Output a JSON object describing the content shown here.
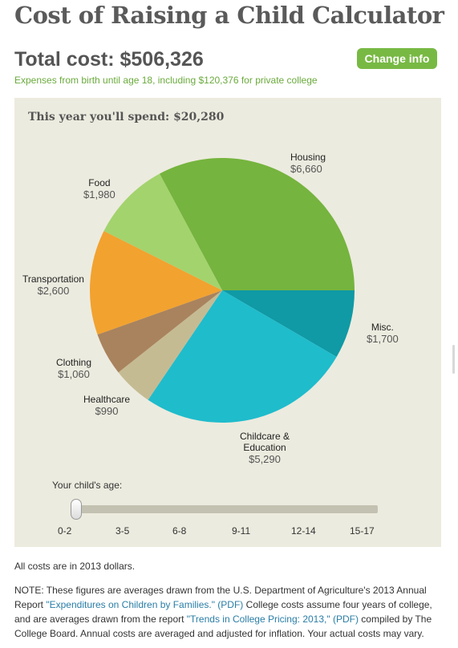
{
  "title": "Cost of Raising a Child Calculator",
  "total_cost": "Total cost: $506,326",
  "change_button": "Change info",
  "expenses_note": "Expenses from birth until age 18, including $120,376 for private college",
  "spend_heading": "This year you'll spend: $20,280",
  "chart_data": {
    "type": "pie",
    "title": "This year you'll spend: $20,280",
    "slices": [
      {
        "label": "Housing",
        "value": 6660,
        "value_label": "$6,660",
        "color": "#75b43e"
      },
      {
        "label": "Misc.",
        "value": 1700,
        "value_label": "$1,700",
        "color": "#0f9aa5"
      },
      {
        "label": "Childcare & Education",
        "value": 5290,
        "value_label": "$5,290",
        "color": "#1fbccc"
      },
      {
        "label": "Healthcare",
        "value": 990,
        "value_label": "$990",
        "color": "#c5bb93"
      },
      {
        "label": "Clothing",
        "value": 1060,
        "value_label": "$1,060",
        "color": "#a9835e"
      },
      {
        "label": "Transportation",
        "value": 2600,
        "value_label": "$2,600",
        "color": "#f2a22f"
      },
      {
        "label": "Food",
        "value": 1980,
        "value_label": "$1,980",
        "color": "#a3d36d"
      }
    ]
  },
  "slider": {
    "label": "Your child's age:",
    "ticks": [
      "0-2",
      "3-5",
      "6-8",
      "9-11",
      "12-14",
      "15-17"
    ],
    "selected": "0-2"
  },
  "footnote": "All costs are in 2013 dollars.",
  "note": {
    "text1": "NOTE: These figures are averages drawn from the U.S. Department of Agriculture's 2013 Annual Report ",
    "link1": "\"Expenditures on Children by Families.\" (PDF)",
    "text2": " College costs assume four years of college, and are averages drawn from the report ",
    "link2": "\"Trends in College Pricing: 2013,\" (PDF)",
    "text3": " compiled by The College Board. Annual costs are averaged and adjusted for inflation. Your actual costs may vary."
  }
}
